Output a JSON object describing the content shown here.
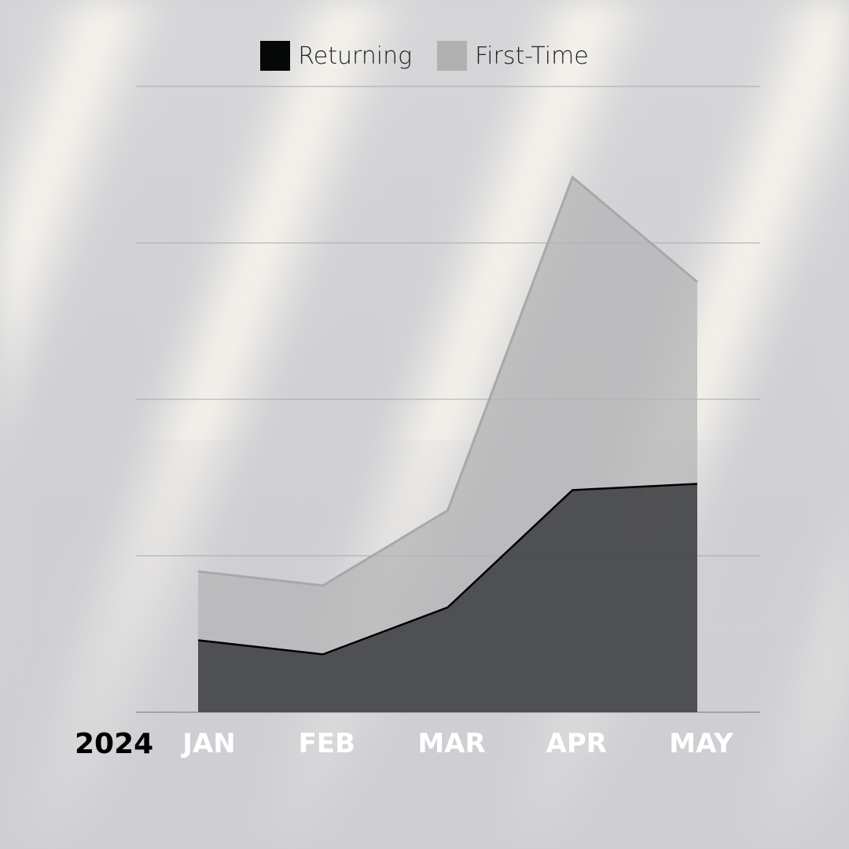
{
  "chart_data": {
    "type": "area",
    "stacked": true,
    "categories": [
      "JAN",
      "FEB",
      "MAR",
      "APR",
      "MAY"
    ],
    "year_label": "2024",
    "series": [
      {
        "name": "Returning",
        "values": [
          0.46,
          0.37,
          0.67,
          1.42,
          1.46
        ],
        "color": "#4a4b4e"
      },
      {
        "name": "First-Time",
        "values": [
          0.44,
          0.44,
          0.62,
          2.0,
          1.29
        ],
        "color": "#b4b4b6"
      }
    ],
    "ylim": [
      0,
      4
    ],
    "grid": true,
    "legend": "top-center",
    "xlabel": "",
    "ylabel": ""
  },
  "legend": {
    "returning": "Returning",
    "first_time": "First-Time",
    "returning_color": "#050807",
    "first_time_color": "#b1b1b1"
  }
}
